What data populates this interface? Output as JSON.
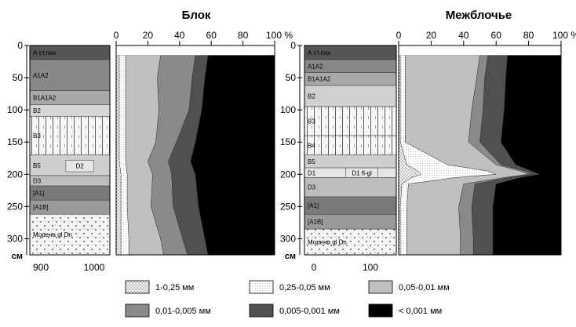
{
  "chart_data": [
    {
      "type": "area",
      "title": "Блок",
      "depth_unit": "см",
      "depth_ticks": [
        0,
        50,
        100,
        150,
        200,
        250,
        300
      ],
      "depth_range": [
        0,
        325
      ],
      "x_ticks": [
        "0",
        "20",
        "40",
        "60",
        "80",
        "100 %"
      ],
      "x_range": [
        0,
        100
      ],
      "profile_x_ticks": [
        "900",
        "1000"
      ],
      "horizons": [
        {
          "label": "А ст.пах",
          "top": 0,
          "bottom": 22,
          "color": "#555555"
        },
        {
          "label": "А1А2",
          "top": 22,
          "bottom": 70,
          "color": "#888888"
        },
        {
          "label": "B1А1А2",
          "top": 70,
          "bottom": 92,
          "color": "#a8a8a8"
        },
        {
          "label": "B2",
          "top": 92,
          "bottom": 110,
          "color": "#d6d6d6"
        },
        {
          "label": "B3",
          "top": 110,
          "bottom": 170,
          "color": "#f2f2f2"
        },
        {
          "label": "B5",
          "top": 170,
          "bottom": 202,
          "color": "#cfcfcf"
        },
        {
          "label": "D2",
          "top": 178,
          "bottom": 196,
          "color": "#e6e6e6"
        },
        {
          "label": "D3",
          "top": 202,
          "bottom": 218,
          "color": "#bdbdbd"
        },
        {
          "label": "[A1]",
          "top": 218,
          "bottom": 240,
          "color": "#7a7a7a"
        },
        {
          "label": "[A1B]",
          "top": 240,
          "bottom": 262,
          "color": "#9a9a9a"
        },
        {
          "label": "Морена gl Dn",
          "top": 262,
          "bottom": 325,
          "color": "#f4f4f4"
        }
      ],
      "depths": [
        15,
        50,
        100,
        150,
        180,
        200,
        250,
        300,
        325
      ],
      "series": [
        {
          "name": "1-0,25 мм",
          "cumulative": [
            2,
            2,
            2,
            2,
            2,
            3,
            3,
            3,
            3
          ],
          "color": "#f6f6f6",
          "pattern": "dots"
        },
        {
          "name": "0,25-0,05 мм",
          "cumulative": [
            6,
            6,
            6,
            6,
            6,
            7,
            7,
            8,
            8
          ],
          "color": "#ffffff",
          "pattern": "fine-dots"
        },
        {
          "name": "0,05-0,01 мм",
          "cumulative": [
            28,
            26,
            27,
            25,
            20,
            23,
            22,
            28,
            30
          ],
          "color": "#c0c0c0"
        },
        {
          "name": "0,01-0,005 мм",
          "cumulative": [
            50,
            48,
            46,
            38,
            33,
            35,
            36,
            42,
            45
          ],
          "color": "#8a8a8a"
        },
        {
          "name": "0,005-0,001 мм",
          "cumulative": [
            58,
            56,
            54,
            50,
            47,
            50,
            52,
            56,
            58
          ],
          "color": "#505050"
        },
        {
          "name": "< 0,001 мм",
          "cumulative": [
            100,
            100,
            100,
            100,
            100,
            100,
            100,
            100,
            100
          ],
          "color": "#000000"
        }
      ]
    },
    {
      "type": "area",
      "title": "Межблочье",
      "depth_unit": "см",
      "depth_ticks": [
        0,
        50,
        100,
        150,
        200,
        250,
        300
      ],
      "depth_range": [
        0,
        325
      ],
      "x_ticks": [
        "0",
        "20",
        "40",
        "60",
        "80",
        "100 %"
      ],
      "x_range": [
        0,
        100
      ],
      "profile_x_ticks": [
        "0",
        "100"
      ],
      "horizons": [
        {
          "label": "А ст.пах",
          "top": 0,
          "bottom": 22,
          "color": "#555555"
        },
        {
          "label": "А1А2",
          "top": 22,
          "bottom": 42,
          "color": "#888888"
        },
        {
          "label": "B1А1А2",
          "top": 42,
          "bottom": 62,
          "color": "#a8a8a8"
        },
        {
          "label": "B2",
          "top": 62,
          "bottom": 95,
          "color": "#d0d0d0"
        },
        {
          "label": "B3",
          "top": 95,
          "bottom": 140,
          "color": "#f2f2f2"
        },
        {
          "label": "B4",
          "top": 140,
          "bottom": 170,
          "color": "#f7f7f7"
        },
        {
          "label": "B5",
          "top": 170,
          "bottom": 190,
          "color": "#cfcfcf"
        },
        {
          "label": "D1",
          "top": 190,
          "bottom": 205,
          "color": "#e6e6e6"
        },
        {
          "label": "D1 fl-gl",
          "top": 190,
          "bottom": 205,
          "color": "#e6e6e6"
        },
        {
          "label": "D3",
          "top": 205,
          "bottom": 235,
          "color": "#bdbdbd"
        },
        {
          "label": "[A1]",
          "top": 235,
          "bottom": 262,
          "color": "#7a7a7a"
        },
        {
          "label": "[A1B]",
          "top": 262,
          "bottom": 285,
          "color": "#9a9a9a"
        },
        {
          "label": "Морена gl Dn",
          "top": 285,
          "bottom": 325,
          "color": "#f4f4f4"
        }
      ],
      "depths": [
        15,
        50,
        100,
        150,
        185,
        195,
        200,
        205,
        215,
        250,
        300,
        325
      ],
      "series": [
        {
          "name": "1-0,25 мм",
          "cumulative": [
            1,
            1,
            1,
            1,
            5,
            12,
            14,
            8,
            2,
            1,
            1,
            1
          ],
          "color": "#f6f6f6",
          "pattern": "dots"
        },
        {
          "name": "0,25-0,05 мм",
          "cumulative": [
            4,
            4,
            4,
            4,
            30,
            55,
            60,
            35,
            6,
            5,
            5,
            5
          ],
          "color": "#ffffff",
          "pattern": "fine-dots"
        },
        {
          "name": "0,05-0,01 мм",
          "cumulative": [
            50,
            48,
            45,
            43,
            60,
            75,
            80,
            65,
            40,
            37,
            38,
            38
          ],
          "color": "#c0c0c0"
        },
        {
          "name": "0,01-0,005 мм",
          "cumulative": [
            55,
            53,
            52,
            50,
            63,
            78,
            82,
            68,
            47,
            45,
            46,
            46
          ],
          "color": "#8a8a8a"
        },
        {
          "name": "0,005-0,001 мм",
          "cumulative": [
            67,
            66,
            65,
            63,
            72,
            82,
            87,
            75,
            60,
            58,
            58,
            58
          ],
          "color": "#505050"
        },
        {
          "name": "< 0,001 мм",
          "cumulative": [
            100,
            100,
            100,
            100,
            100,
            100,
            100,
            100,
            100,
            100,
            100,
            100
          ],
          "color": "#000000"
        }
      ]
    }
  ],
  "legend": [
    {
      "label": "1-0,25 мм",
      "color": "#f6f6f6",
      "pattern": "dots"
    },
    {
      "label": "0,25-0,05 мм",
      "color": "#ffffff",
      "pattern": "fine-dots"
    },
    {
      "label": "0,05-0,01 мм",
      "color": "#c0c0c0"
    },
    {
      "label": "0,01-0,005  мм",
      "color": "#8a8a8a"
    },
    {
      "label": "0,005-0,001  мм",
      "color": "#505050"
    },
    {
      "label": "< 0,001  мм",
      "color": "#000000"
    }
  ]
}
